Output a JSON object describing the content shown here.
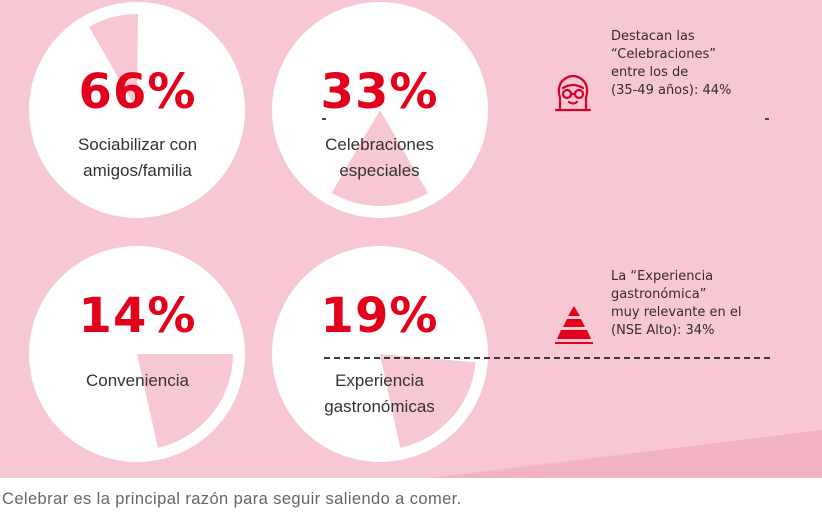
{
  "chart_data": {
    "type": "pie",
    "items": [
      {
        "value": 66,
        "display": "66%",
        "label_lines": [
          "Sociabilizar con",
          "amigos/familia"
        ]
      },
      {
        "value": 33,
        "display": "33%",
        "label_lines": [
          "Celebraciones",
          "especiales"
        ]
      },
      {
        "value": 14,
        "display": "14%",
        "label_lines": [
          "Conveniencia"
        ]
      },
      {
        "value": 19,
        "display": "19%",
        "label_lines": [
          "Experiencia",
          "gastronómicas"
        ]
      }
    ],
    "annotations": [
      {
        "icon": "person-glasses-icon",
        "lines": [
          "Destacan las",
          "“Celebraciones”",
          "entre los de",
          "(35-49 años): 44%"
        ]
      },
      {
        "icon": "pyramid-icon",
        "lines": [
          "La “Experiencia",
          "gastronómica”",
          "muy relevante en el",
          "(NSE Alto): 34%"
        ]
      }
    ]
  },
  "colors": {
    "background": "#f7c7d3",
    "accent": "#e3001b",
    "slice": "#f7c7d3",
    "circle": "#ffffff"
  },
  "caption": "Celebrar es la principal razón para seguir saliendo a comer."
}
